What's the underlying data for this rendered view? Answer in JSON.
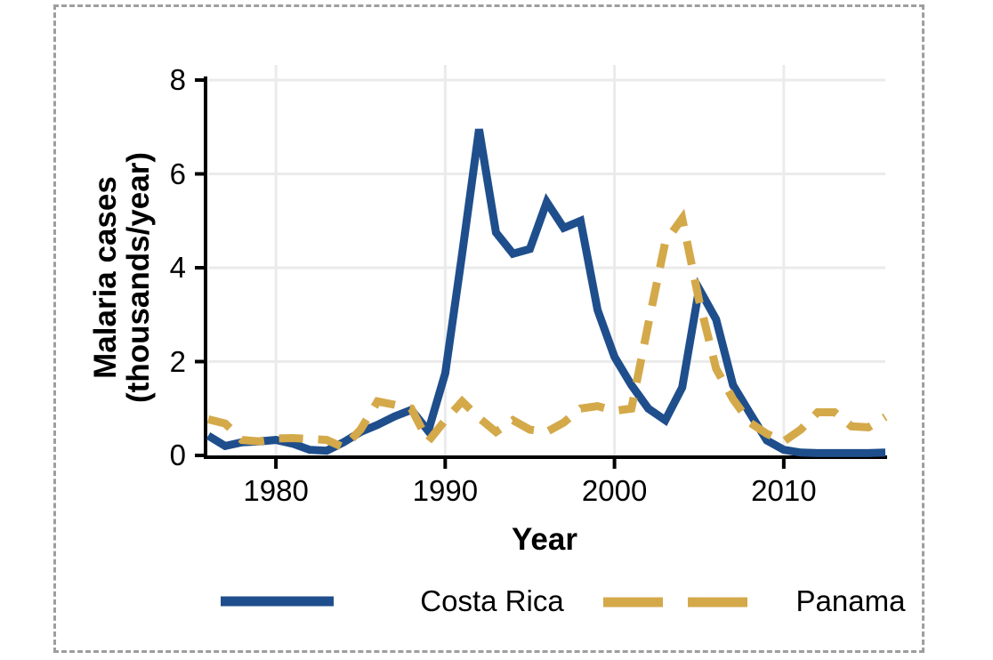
{
  "figure": {
    "background": "#ffffff",
    "border_color": "#9e9e9e"
  },
  "axes": {
    "y_title_line1": "Malaria cases",
    "y_title_line2": "(thousands/year)",
    "x_title": "Year"
  },
  "chart_data": {
    "type": "line",
    "title": "",
    "xlabel": "Year",
    "ylabel": "Malaria cases (thousands/year)",
    "xlim": [
      1976,
      2016
    ],
    "ylim": [
      0,
      8
    ],
    "x_ticks": [
      1980,
      1990,
      2000,
      2010
    ],
    "y_ticks": [
      0,
      2,
      4,
      6,
      8
    ],
    "grid": true,
    "gridline_color": "#ebebeb",
    "legend_position": "bottom",
    "x": [
      1976,
      1977,
      1978,
      1979,
      1980,
      1981,
      1982,
      1983,
      1984,
      1985,
      1986,
      1987,
      1988,
      1989,
      1990,
      1991,
      1992,
      1993,
      1994,
      1995,
      1996,
      1997,
      1998,
      1999,
      2000,
      2001,
      2002,
      2003,
      2004,
      2005,
      2006,
      2007,
      2008,
      2009,
      2010,
      2011,
      2012,
      2013,
      2014,
      2015,
      2016
    ],
    "series": [
      {
        "name": "Costa Rica",
        "color": "#1f4e8c",
        "style": "solid",
        "values": [
          0.42,
          0.2,
          0.28,
          0.3,
          0.33,
          0.25,
          0.12,
          0.1,
          0.28,
          0.5,
          0.65,
          0.83,
          0.97,
          0.52,
          1.75,
          4.3,
          6.95,
          4.75,
          4.3,
          4.4,
          5.4,
          4.85,
          5.0,
          3.1,
          2.1,
          1.5,
          1.0,
          0.75,
          1.45,
          3.55,
          2.9,
          1.5,
          0.9,
          0.32,
          0.12,
          0.06,
          0.05,
          0.05,
          0.05,
          0.05,
          0.06
        ]
      },
      {
        "name": "Panama",
        "color": "#d4a94a",
        "style": "dashed",
        "values": [
          0.77,
          0.68,
          0.33,
          0.3,
          0.36,
          0.37,
          0.35,
          0.33,
          0.17,
          0.55,
          1.15,
          1.08,
          1.0,
          0.3,
          0.75,
          1.15,
          0.8,
          0.5,
          0.75,
          0.55,
          0.5,
          0.7,
          1.0,
          1.05,
          0.95,
          1.0,
          2.8,
          4.55,
          5.05,
          3.3,
          1.85,
          1.2,
          0.7,
          0.46,
          0.3,
          0.55,
          0.92,
          0.92,
          0.62,
          0.6,
          0.82
        ]
      }
    ]
  }
}
